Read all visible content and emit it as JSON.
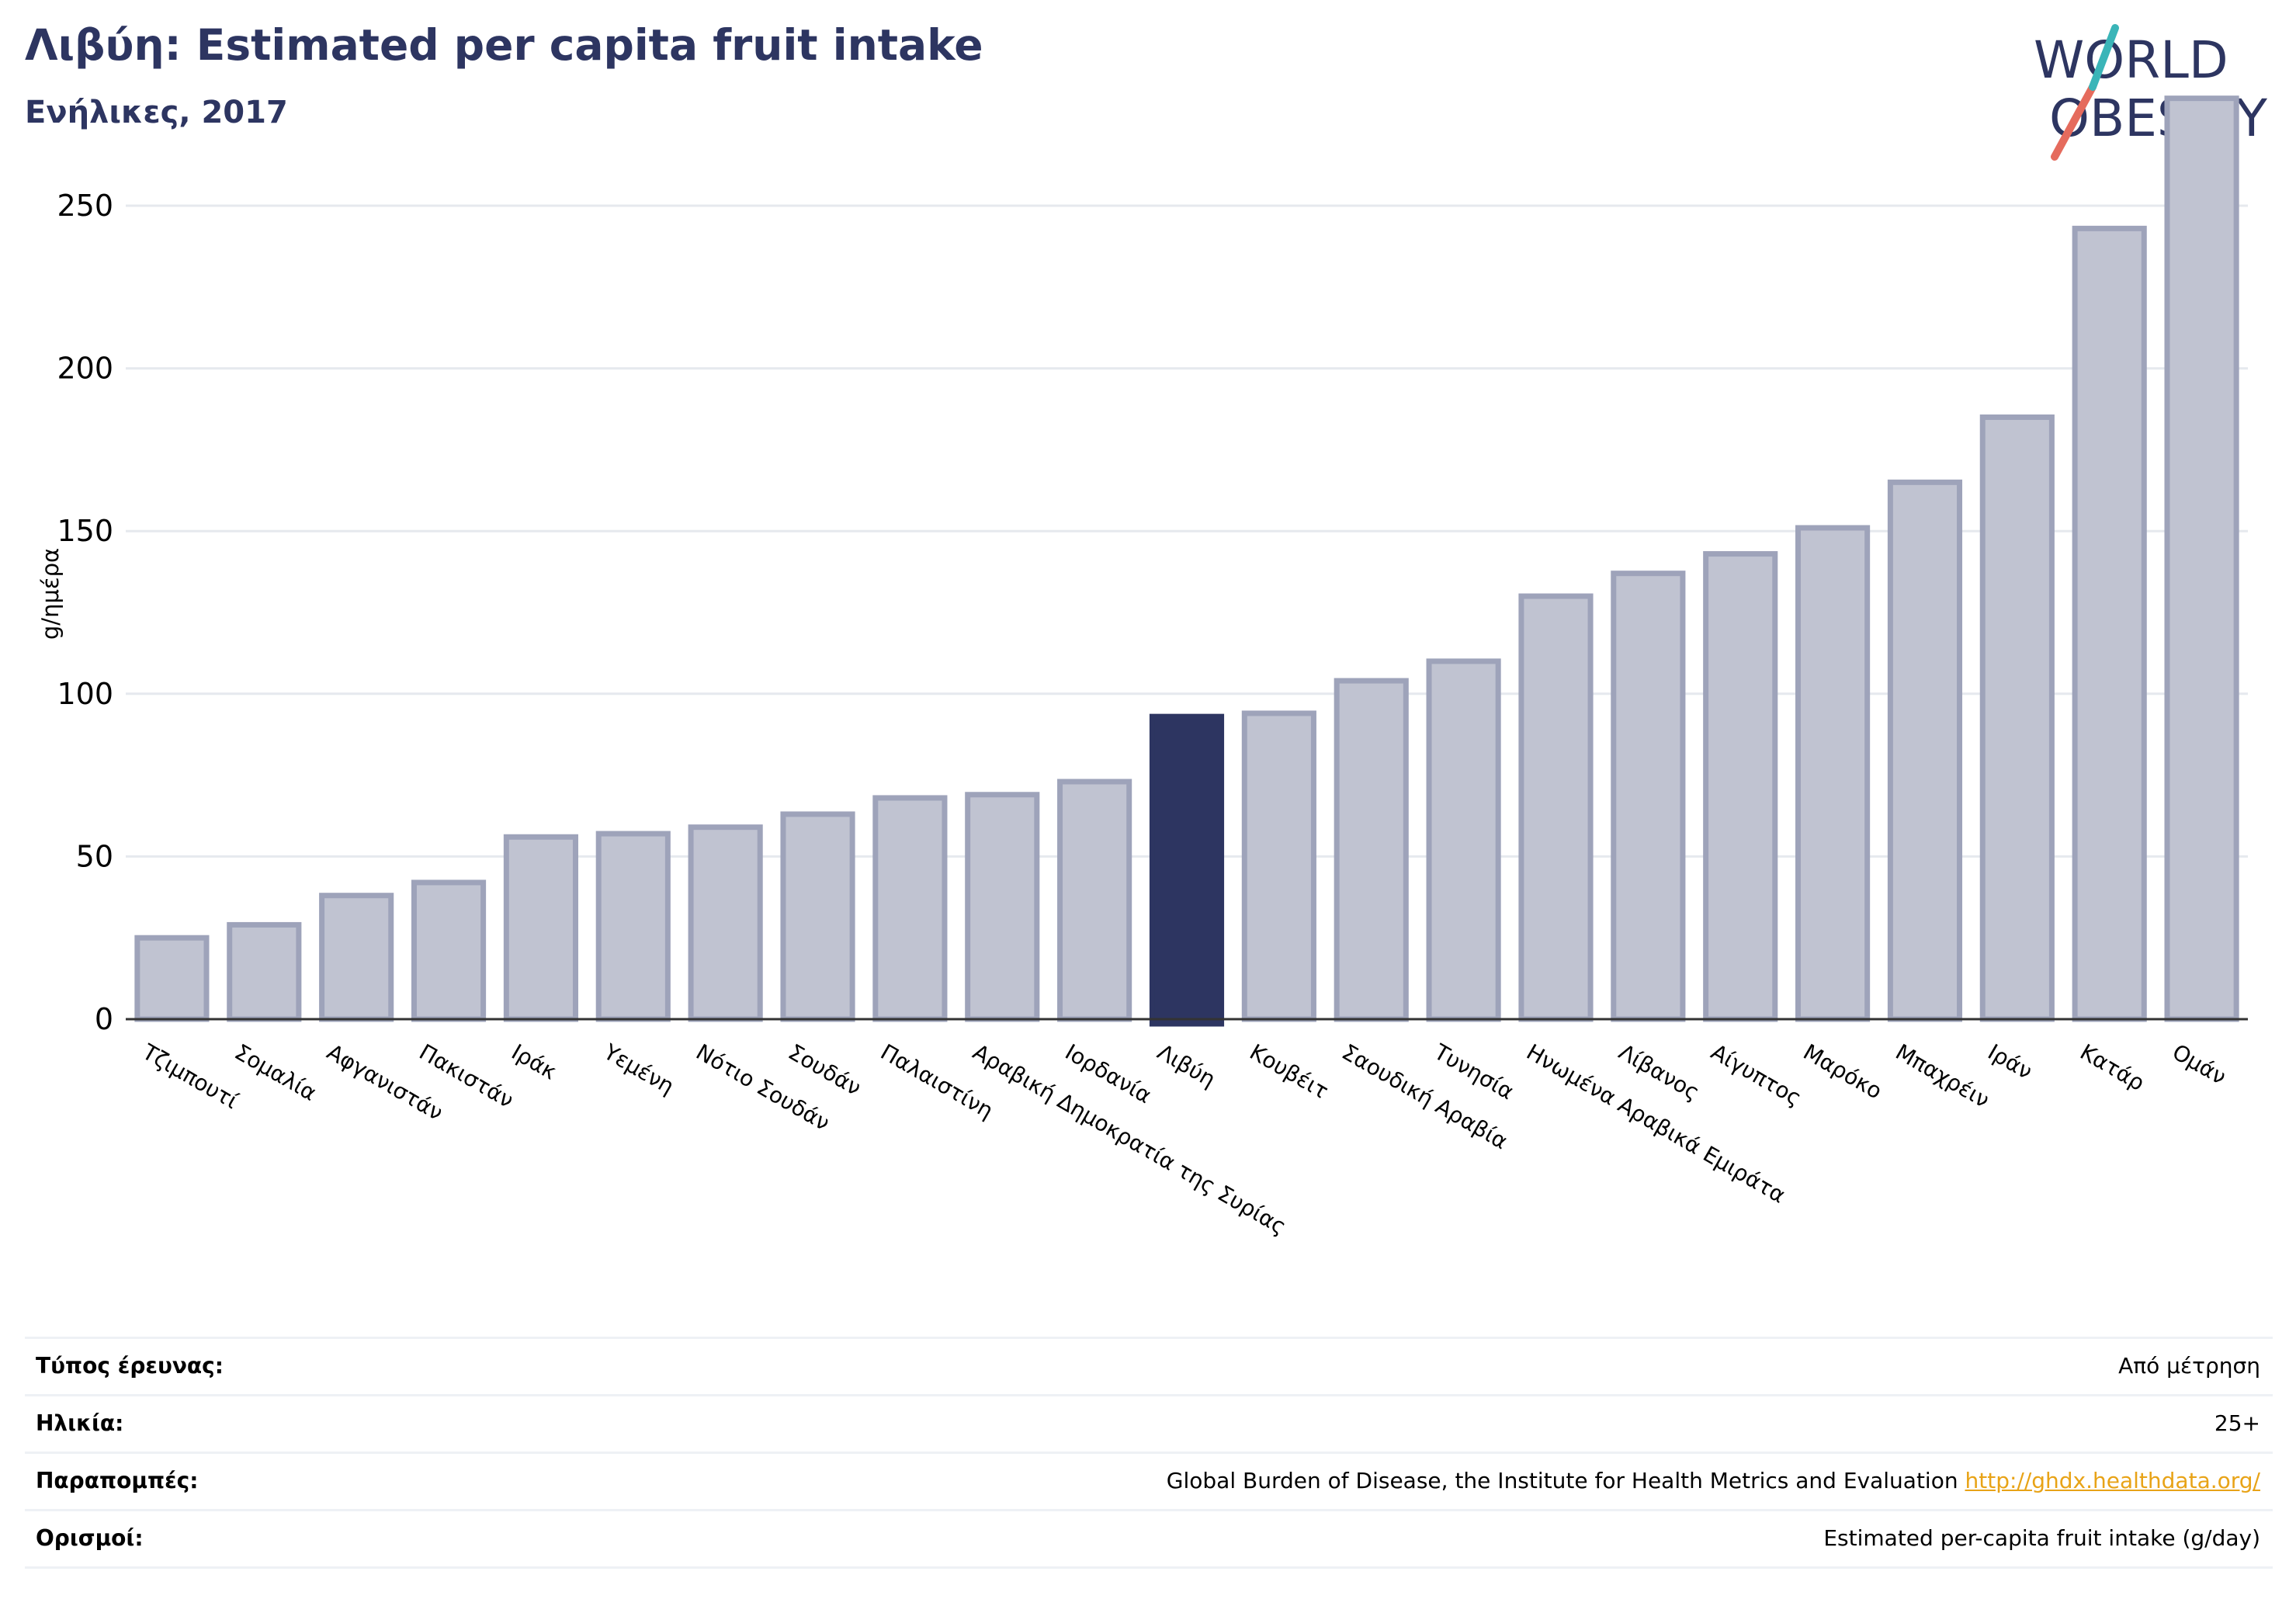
{
  "header": {
    "title": "Λιβύη: Estimated per capita fruit intake",
    "subtitle": "Ενήλικες, 2017"
  },
  "logo": {
    "line1": "WORLD",
    "line2": "OBESITY"
  },
  "chart_data": {
    "type": "bar",
    "ylabel": "g/ημέρα",
    "xlabel": "",
    "ylim": [
      0,
      285
    ],
    "yticks": [
      0,
      50,
      100,
      150,
      200,
      250
    ],
    "grid": true,
    "highlight": "Λιβύη",
    "colors": {
      "bar": "#c0c3d1",
      "bar_edge": "#9ea3ba",
      "highlight": "#2d3561",
      "grid": "#e6e9ee",
      "axis": "#333333"
    },
    "categories": [
      "Τζιμπουτί",
      "Σομαλία",
      "Αφγανιστάν",
      "Πακιστάν",
      "Ιράκ",
      "Υεμένη",
      "Νότιο Σουδάν",
      "Σουδάν",
      "Παλαιστίνη",
      "Αραβική Δημοκρατία της Συρίας",
      "Ιορδανία",
      "Λιβύη",
      "Κουβέιτ",
      "Σαουδική Αραβία",
      "Τυνησία",
      "Ηνωμένα Αραβικά Εμιράτα",
      "Λίβανος",
      "Αίγυπτος",
      "Μαρόκο",
      "Μπαχρέιν",
      "Ιράν",
      "Κατάρ",
      "Ομάν"
    ],
    "values": [
      25,
      29,
      38,
      42,
      56,
      57,
      59,
      63,
      68,
      69,
      73,
      93,
      94,
      104,
      110,
      130,
      137,
      143,
      151,
      165,
      185,
      243,
      283
    ]
  },
  "info": {
    "rows": [
      {
        "label": "Τύπος έρευνας:",
        "value": "Από μέτρηση"
      },
      {
        "label": "Ηλικία:",
        "value": "25+"
      },
      {
        "label": "Παραπομπές:",
        "value": "Global Burden of Disease, the Institute for Health Metrics and Evaluation ",
        "link": "http://ghdx.healthdata.org/"
      },
      {
        "label": "Ορισμοί:",
        "value": "Estimated per-capita fruit intake (g/day)"
      }
    ]
  }
}
